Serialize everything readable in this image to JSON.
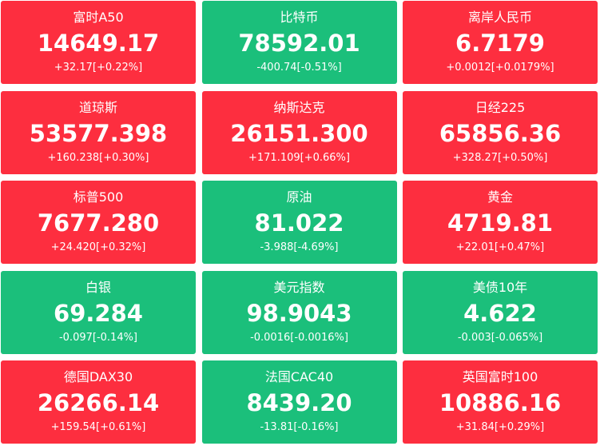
{
  "tiles": [
    {
      "name": "富时A50",
      "price": "14649.17",
      "change": "+32.17[+0.22%]",
      "color": "#fd2e3f"
    },
    {
      "name": "比特币",
      "price": "78592.01",
      "change": "-400.74[-0.51%]",
      "color": "#1bbf7b"
    },
    {
      "name": "离岸人民币",
      "price": "6.7179",
      "change": "+0.0012[+0.0179%]",
      "color": "#fd2e3f"
    },
    {
      "name": "道琼斯",
      "price": "53577.398",
      "change": "+160.238[+0.30%]",
      "color": "#fd2e3f"
    },
    {
      "name": "纳斯达克",
      "price": "26151.300",
      "change": "+171.109[+0.66%]",
      "color": "#fd2e3f"
    },
    {
      "name": "日经225",
      "price": "65856.36",
      "change": "+328.27[+0.50%]",
      "color": "#fd2e3f"
    },
    {
      "name": "标普500",
      "price": "7677.280",
      "change": "+24.420[+0.32%]",
      "color": "#fd2e3f"
    },
    {
      "name": "原油",
      "price": "81.022",
      "change": "-3.988[-4.69%]",
      "color": "#1bbf7b"
    },
    {
      "name": "黄金",
      "price": "4719.81",
      "change": "+22.01[+0.47%]",
      "color": "#fd2e3f"
    },
    {
      "name": "白银",
      "price": "69.284",
      "change": "-0.097[-0.14%]",
      "color": "#1bbf7b"
    },
    {
      "name": "美元指数",
      "price": "98.9043",
      "change": "-0.0016[-0.0016%]",
      "color": "#1bbf7b"
    },
    {
      "name": "美债10年",
      "price": "4.622",
      "change": "-0.003[-0.065%]",
      "color": "#1bbf7b"
    },
    {
      "name": "德国DAX30",
      "price": "26266.14",
      "change": "+159.54[+0.61%]",
      "color": "#fd2e3f"
    },
    {
      "name": "法国CAC40",
      "price": "8439.20",
      "change": "-13.81[-0.16%]",
      "color": "#1bbf7b"
    },
    {
      "name": "英国富时100",
      "price": "10886.16",
      "change": "+31.84[+0.29%]",
      "color": "#fd2e3f"
    }
  ]
}
